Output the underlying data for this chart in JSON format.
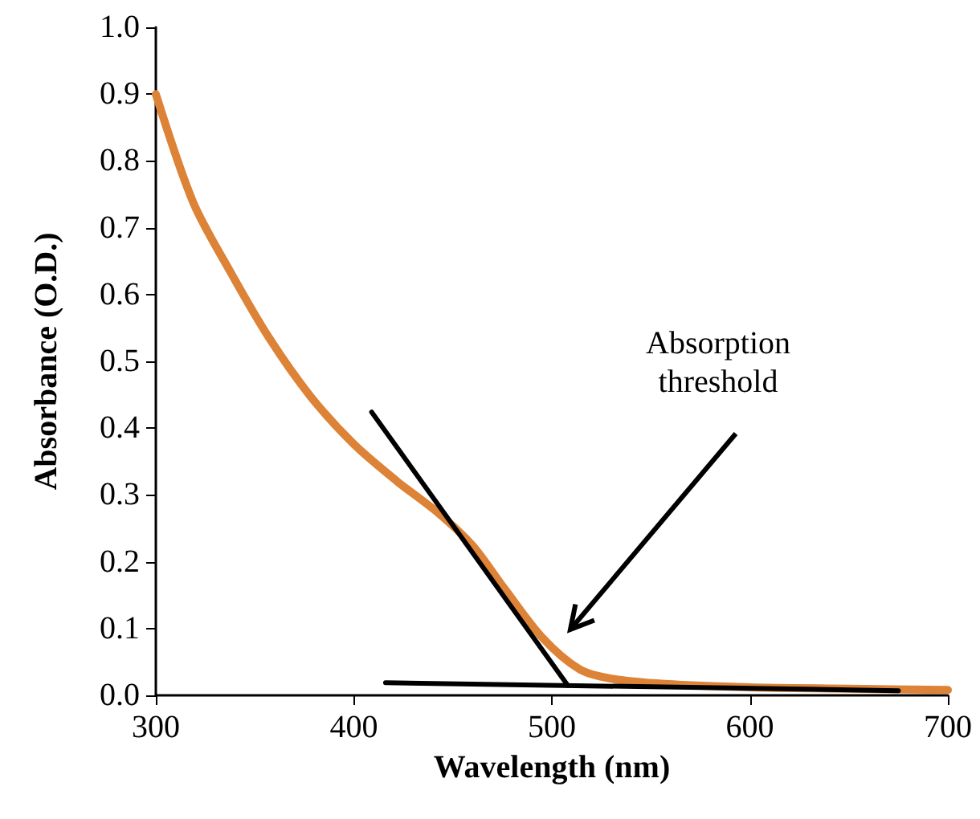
{
  "chart_data": {
    "type": "line",
    "xlabel": "Wavelength (nm)",
    "ylabel": "Absorbance (O.D.)",
    "xlim": [
      300,
      700
    ],
    "xticks": [
      300,
      400,
      500,
      600,
      700
    ],
    "ylim": [
      0,
      1
    ],
    "yticks": [
      {
        "value": 0,
        "label": "0.0"
      },
      {
        "value": 0.1,
        "label": "0.1"
      },
      {
        "value": 0.2,
        "label": "0.2"
      },
      {
        "value": 0.3,
        "label": "0.3"
      },
      {
        "value": 0.4,
        "label": "0.4"
      },
      {
        "value": 0.5,
        "label": "0.5"
      },
      {
        "value": 0.6,
        "label": "0.6"
      },
      {
        "value": 0.7,
        "label": "0.7"
      },
      {
        "value": 0.8,
        "label": "0.8"
      },
      {
        "value": 0.9,
        "label": "0.9"
      },
      {
        "value": 1,
        "label": "1.0"
      }
    ],
    "grid": false,
    "marker": "none",
    "line_style": "solid",
    "annotations": [
      "Absorption\nthreshold"
    ],
    "series": [
      {
        "color": "#dd8338",
        "x": [
          300,
          319,
          338,
          357,
          378,
          400,
          422,
          443,
          460,
          476,
          495,
          514,
          530,
          557,
          600,
          650,
          700
        ],
        "values": [
          0.9,
          0.737,
          0.632,
          0.536,
          0.448,
          0.376,
          0.32,
          0.272,
          0.224,
          0.16,
          0.087,
          0.039,
          0.025,
          0.017,
          0.012,
          0.01,
          0.008
        ]
      },
      {
        "type": "line",
        "color": "#000000",
        "x": [
          409,
          508
        ],
        "values": [
          0.424,
          0.015
        ]
      },
      {
        "type": "line",
        "color": "#000000",
        "x": [
          416,
          675
        ],
        "values": [
          0.019,
          0.007
        ]
      }
    ]
  }
}
